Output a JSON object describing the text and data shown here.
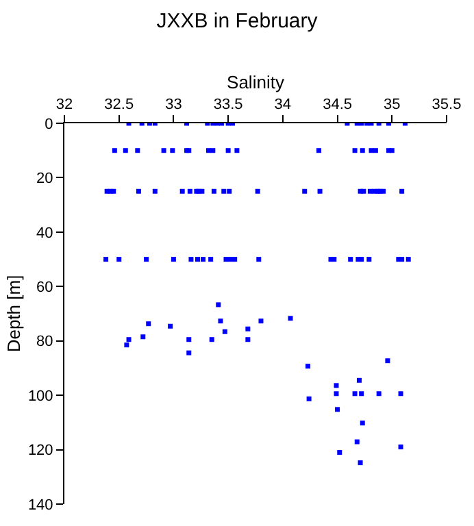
{
  "chart_data": {
    "type": "scatter",
    "title": "JXXB in February",
    "xlabel": "Salinity",
    "ylabel": "Depth [m]",
    "xlim": [
      32,
      35.5
    ],
    "xticks": [
      32,
      32.5,
      33,
      33.5,
      34,
      34.5,
      35,
      35.5
    ],
    "ylim": [
      140,
      0
    ],
    "yticks": [
      0,
      20,
      40,
      60,
      80,
      100,
      120,
      140
    ],
    "marker": "square",
    "series": [
      {
        "color": "#0000ff",
        "x": [
          32.59,
          32.71,
          32.78,
          32.83,
          33.12,
          33.31,
          33.36,
          33.4,
          33.44,
          33.5,
          33.54,
          34.59,
          34.68,
          34.72,
          34.77,
          34.81,
          34.88,
          34.97,
          35.12,
          32.46,
          32.56,
          32.67,
          32.91,
          32.99,
          33.12,
          33.14,
          33.32,
          33.36,
          33.5,
          33.58,
          34.33,
          34.66,
          34.73,
          34.81,
          34.85,
          34.97,
          35.0,
          32.39,
          32.42,
          32.45,
          32.68,
          32.83,
          33.08,
          33.15,
          33.21,
          33.23,
          33.26,
          33.37,
          33.46,
          33.51,
          33.77,
          34.2,
          34.34,
          34.71,
          34.74,
          34.8,
          34.84,
          34.87,
          34.89,
          34.92,
          35.09,
          32.38,
          32.5,
          32.75,
          33.0,
          33.16,
          33.22,
          33.27,
          33.34,
          33.48,
          33.5,
          33.54,
          33.56,
          33.78,
          34.44,
          34.47,
          34.62,
          34.69,
          34.72,
          34.79,
          35.06,
          35.09,
          35.15,
          33.41,
          32.59,
          32.57,
          32.72,
          32.77,
          32.97,
          33.14,
          33.14,
          33.35,
          33.43,
          33.47,
          33.68,
          33.68,
          33.8,
          34.07,
          34.23,
          34.96,
          34.7,
          34.49,
          34.49,
          34.66,
          34.72,
          34.88,
          35.08,
          34.24,
          34.5,
          34.73,
          34.68,
          35.08,
          34.52,
          34.71
        ],
        "values": [
          0,
          0,
          0,
          0,
          0,
          0,
          0,
          0,
          0,
          0,
          0,
          0,
          0,
          0,
          0,
          0,
          0,
          0,
          0,
          10,
          10,
          10,
          10,
          10,
          10,
          10,
          10,
          10,
          10,
          10,
          10,
          10,
          10,
          10,
          10,
          10,
          10,
          25,
          25,
          25,
          25,
          25,
          25,
          25,
          25,
          25,
          25,
          25,
          25,
          25,
          25,
          25,
          25,
          25,
          25,
          25,
          25,
          25,
          25,
          25,
          25,
          50,
          50,
          50,
          50,
          50,
          50,
          50,
          50,
          50,
          50,
          50,
          50,
          50,
          50,
          50,
          50,
          50,
          50,
          50,
          50,
          50,
          50,
          66.7,
          79.5,
          81.5,
          78.5,
          73.7,
          74.6,
          79.5,
          84.4,
          79.5,
          72.7,
          76.6,
          75.6,
          79.5,
          72.7,
          71.7,
          89.3,
          87.3,
          94.5,
          96.4,
          99.4,
          99.4,
          99.4,
          99.4,
          99.4,
          101.3,
          105.2,
          110.2,
          117.1,
          119.0,
          121.0,
          124.8
        ]
      }
    ]
  }
}
